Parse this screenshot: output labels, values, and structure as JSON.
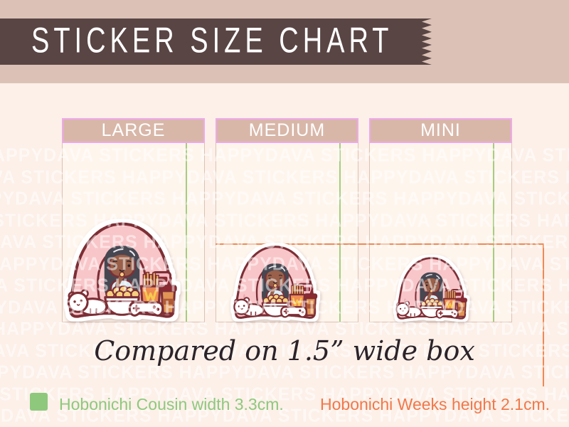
{
  "banner": {
    "title": "STICKER SIZE CHART"
  },
  "boxes": [
    {
      "id": "large",
      "label": "LARGE"
    },
    {
      "id": "medium",
      "label": "MEDIUM"
    },
    {
      "id": "mini",
      "label": "MINI"
    }
  ],
  "caption": {
    "text": "Compared on 1.5” wide box"
  },
  "legend": [
    {
      "id": "cousin",
      "label": "Hobonichi Cousin width 3.3cm.",
      "color": "#8ec87d"
    },
    {
      "id": "weeks",
      "label": "Hobonichi Weeks height 2.1cm.",
      "color": "#f0784a"
    }
  ],
  "guides": {
    "cousin_line_color": "#a8cc80",
    "weeks_line_color": "#ee8a56"
  },
  "watermark": {
    "text": "HAPPYDAVA STICKERS"
  },
  "colors": {
    "background": "#fcf0e9",
    "top_band": "#dcc2b6",
    "banner": "#594544",
    "box_header": "#d8b7a9",
    "box_border": "#efa9ec"
  }
}
